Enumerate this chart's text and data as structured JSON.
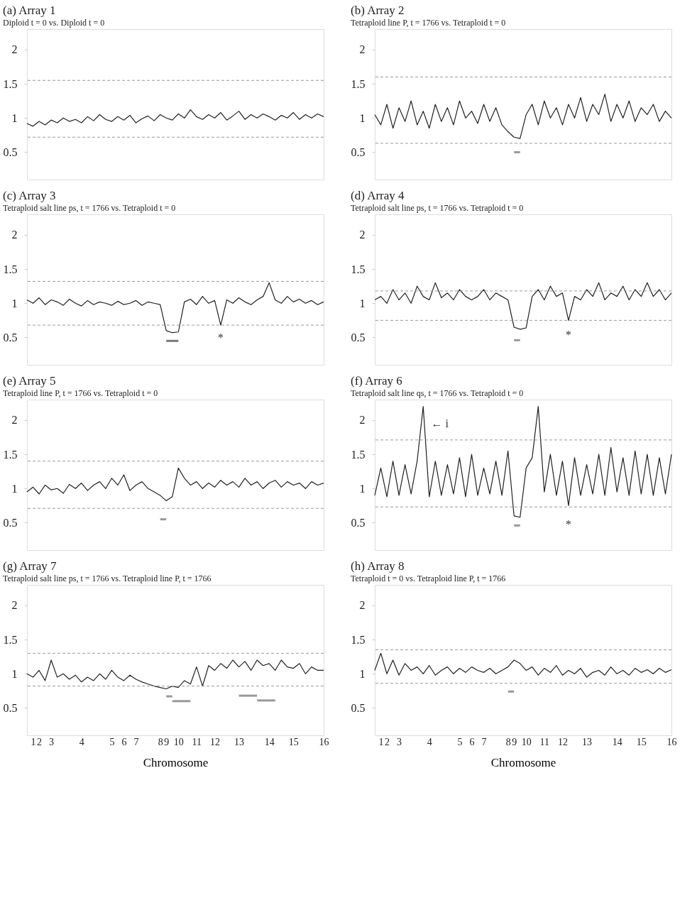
{
  "chart_data": [
    {
      "type": "line",
      "title": "(a) Array 1",
      "subtitle": "Diploid t = 0 vs. Diploid t = 0",
      "tick_labels": "y",
      "ylim": [
        0.1,
        2.3
      ],
      "yticks": [
        0.5,
        1,
        1.5,
        2
      ],
      "categories": [
        null,
        "1",
        "2",
        null,
        "3",
        null,
        null,
        null,
        null,
        "4",
        null,
        null,
        null,
        null,
        "5",
        null,
        "6",
        null,
        "7",
        null,
        null,
        null,
        "8",
        "9",
        null,
        "10",
        null,
        null,
        "11",
        null,
        null,
        "12",
        null,
        null,
        null,
        "13",
        null,
        null,
        null,
        null,
        "14",
        null,
        null,
        null,
        "15",
        null,
        null,
        null,
        null,
        "16"
      ],
      "series": [
        {
          "color": "#222222",
          "values": [
            0.92,
            0.88,
            0.95,
            0.9,
            0.97,
            0.93,
            1.0,
            0.95,
            0.98,
            0.93,
            1.02,
            0.96,
            1.05,
            0.98,
            0.95,
            1.02,
            0.97,
            1.04,
            0.93,
            0.99,
            1.03,
            0.96,
            1.05,
            1.0,
            0.97,
            1.06,
            1.0,
            1.12,
            1.02,
            0.98,
            1.05,
            1.0,
            1.08,
            0.97,
            1.03,
            1.1,
            0.98,
            1.05,
            1.0,
            1.06,
            1.02,
            0.97,
            1.04,
            1.0,
            1.08,
            0.98,
            1.05,
            1.0,
            1.06,
            1.02
          ]
        }
      ],
      "ref_lines": [
        {
          "axis": "y",
          "value": 1.55,
          "color": "#999999",
          "line_style": "dashed"
        },
        {
          "axis": "y",
          "value": 0.72,
          "color": "#999999",
          "line_style": "dashed"
        }
      ]
    },
    {
      "type": "line",
      "title": "(b) Array 2",
      "subtitle": "Tetraploid line P, t = 1766 vs. Tetraploid t = 0",
      "tick_labels": "y",
      "ylim": [
        0.1,
        2.3
      ],
      "yticks": [
        0.5,
        1,
        1.5,
        2
      ],
      "categories": [
        null,
        "1",
        "2",
        null,
        "3",
        null,
        null,
        null,
        null,
        "4",
        null,
        null,
        null,
        null,
        "5",
        null,
        "6",
        null,
        "7",
        null,
        null,
        null,
        "8",
        "9",
        null,
        "10",
        null,
        null,
        "11",
        null,
        null,
        "12",
        null,
        null,
        null,
        "13",
        null,
        null,
        null,
        null,
        "14",
        null,
        null,
        null,
        "15",
        null,
        null,
        null,
        null,
        "16"
      ],
      "series": [
        {
          "color": "#222222",
          "values": [
            1.05,
            0.9,
            1.2,
            0.85,
            1.15,
            0.95,
            1.25,
            0.9,
            1.1,
            0.85,
            1.2,
            0.95,
            1.15,
            0.9,
            1.25,
            1.0,
            1.1,
            0.92,
            1.2,
            0.95,
            1.15,
            0.9,
            0.8,
            0.72,
            0.7,
            1.05,
            1.2,
            0.9,
            1.25,
            1.0,
            1.15,
            0.9,
            1.2,
            1.0,
            1.3,
            0.95,
            1.2,
            1.05,
            1.35,
            0.95,
            1.2,
            1.0,
            1.25,
            0.95,
            1.15,
            1.05,
            1.2,
            0.95,
            1.1,
            1.0
          ]
        },
        {
          "color": "#999999",
          "values": [
            null,
            null,
            null,
            null,
            null,
            null,
            null,
            null,
            null,
            null,
            null,
            null,
            null,
            null,
            null,
            null,
            null,
            null,
            null,
            null,
            null,
            null,
            null,
            0.5,
            0.5,
            null,
            null,
            null,
            null,
            null,
            null,
            null,
            null,
            null,
            null,
            null,
            null,
            null,
            null,
            null,
            null,
            null,
            null,
            null,
            null,
            null,
            null,
            null,
            null,
            null
          ]
        }
      ],
      "ref_lines": [
        {
          "axis": "y",
          "value": 1.6,
          "color": "#999999",
          "line_style": "dashed"
        },
        {
          "axis": "y",
          "value": 0.63,
          "color": "#999999",
          "line_style": "dashed"
        }
      ]
    },
    {
      "type": "line",
      "title": "(c) Array 3",
      "subtitle": "Tetraploid salt line ps, t = 1766 vs. Tetraploid t = 0",
      "tick_labels": "y",
      "ylim": [
        0.1,
        2.3
      ],
      "yticks": [
        0.5,
        1,
        1.5,
        2
      ],
      "categories": [
        null,
        "1",
        "2",
        null,
        "3",
        null,
        null,
        null,
        null,
        "4",
        null,
        null,
        null,
        null,
        "5",
        null,
        "6",
        null,
        "7",
        null,
        null,
        null,
        "8",
        "9",
        null,
        "10",
        null,
        null,
        "11",
        null,
        null,
        "12",
        null,
        null,
        null,
        "13",
        null,
        null,
        null,
        null,
        "14",
        null,
        null,
        null,
        "15",
        null,
        null,
        null,
        null,
        "16"
      ],
      "series": [
        {
          "color": "#222222",
          "values": [
            1.05,
            1.0,
            1.08,
            0.98,
            1.05,
            1.02,
            0.97,
            1.06,
            1.0,
            0.96,
            1.04,
            0.98,
            1.02,
            1.0,
            0.97,
            1.03,
            0.98,
            1.0,
            1.04,
            0.97,
            1.02,
            1.0,
            0.98,
            0.6,
            0.57,
            0.58,
            1.02,
            1.06,
            0.98,
            1.1,
            1.0,
            1.04,
            0.68,
            1.05,
            1.0,
            1.08,
            1.02,
            0.98,
            1.05,
            1.1,
            1.3,
            1.05,
            1.0,
            1.1,
            1.02,
            1.06,
            1.0,
            1.04,
            0.98,
            1.02
          ]
        },
        {
          "color": "#777777",
          "values": [
            null,
            null,
            null,
            null,
            null,
            null,
            null,
            null,
            null,
            null,
            null,
            null,
            null,
            null,
            null,
            null,
            null,
            null,
            null,
            null,
            null,
            null,
            null,
            0.45,
            0.45,
            0.45,
            null,
            null,
            null,
            null,
            null,
            null,
            null,
            null,
            null,
            null,
            null,
            null,
            null,
            null,
            null,
            null,
            null,
            null,
            null,
            null,
            null,
            null,
            null,
            null
          ]
        }
      ],
      "ref_lines": [
        {
          "axis": "y",
          "value": 1.32,
          "color": "#999999",
          "line_style": "dashed"
        },
        {
          "axis": "y",
          "value": 0.68,
          "color": "#999999",
          "line_style": "dashed"
        }
      ],
      "annotations": [
        "*"
      ]
    },
    {
      "type": "line",
      "title": "(d) Array 4",
      "subtitle": "Tetraploid salt line ps, t = 1766 vs. Tetraploid t = 0",
      "tick_labels": "y",
      "ylim": [
        0.1,
        2.3
      ],
      "yticks": [
        0.5,
        1,
        1.5,
        2
      ],
      "categories": [
        null,
        "1",
        "2",
        null,
        "3",
        null,
        null,
        null,
        null,
        "4",
        null,
        null,
        null,
        null,
        "5",
        null,
        "6",
        null,
        "7",
        null,
        null,
        null,
        "8",
        "9",
        null,
        "10",
        null,
        null,
        "11",
        null,
        null,
        "12",
        null,
        null,
        null,
        "13",
        null,
        null,
        null,
        null,
        "14",
        null,
        null,
        null,
        "15",
        null,
        null,
        null,
        null,
        "16"
      ],
      "series": [
        {
          "color": "#222222",
          "values": [
            1.05,
            1.1,
            1.0,
            1.2,
            1.05,
            1.15,
            1.0,
            1.25,
            1.1,
            1.05,
            1.3,
            1.08,
            1.15,
            1.05,
            1.2,
            1.1,
            1.05,
            1.1,
            1.2,
            1.05,
            1.15,
            1.1,
            1.05,
            0.65,
            0.62,
            0.64,
            1.1,
            1.2,
            1.05,
            1.25,
            1.1,
            1.15,
            0.75,
            1.1,
            1.05,
            1.2,
            1.1,
            1.3,
            1.05,
            1.15,
            1.1,
            1.25,
            1.05,
            1.2,
            1.1,
            1.3,
            1.1,
            1.2,
            1.05,
            1.15
          ]
        },
        {
          "color": "#999999",
          "values": [
            null,
            null,
            null,
            null,
            null,
            null,
            null,
            null,
            null,
            null,
            null,
            null,
            null,
            null,
            null,
            null,
            null,
            null,
            null,
            null,
            null,
            null,
            null,
            0.46,
            0.46,
            null,
            null,
            null,
            null,
            null,
            null,
            null,
            null,
            null,
            null,
            null,
            null,
            null,
            null,
            null,
            null,
            null,
            null,
            null,
            null,
            null,
            null,
            null,
            null,
            null
          ]
        }
      ],
      "ref_lines": [
        {
          "axis": "y",
          "value": 1.18,
          "color": "#999999",
          "line_style": "dashed"
        },
        {
          "axis": "y",
          "value": 0.75,
          "color": "#999999",
          "line_style": "dashed"
        }
      ],
      "annotations": [
        "*"
      ]
    },
    {
      "type": "line",
      "title": "(e) Array 5",
      "subtitle": "Tetraploid line P, t = 1766 vs. Tetraploid t = 0",
      "tick_labels": "y",
      "ylim": [
        0.1,
        2.3
      ],
      "yticks": [
        0.5,
        1,
        1.5,
        2
      ],
      "categories": [
        null,
        "1",
        "2",
        null,
        "3",
        null,
        null,
        null,
        null,
        "4",
        null,
        null,
        null,
        null,
        "5",
        null,
        "6",
        null,
        "7",
        null,
        null,
        null,
        "8",
        "9",
        null,
        "10",
        null,
        null,
        "11",
        null,
        null,
        "12",
        null,
        null,
        null,
        "13",
        null,
        null,
        null,
        null,
        "14",
        null,
        null,
        null,
        "15",
        null,
        null,
        null,
        null,
        "16"
      ],
      "series": [
        {
          "color": "#222222",
          "values": [
            0.95,
            1.02,
            0.92,
            1.05,
            0.98,
            1.0,
            0.93,
            1.06,
            1.0,
            1.08,
            0.97,
            1.05,
            1.1,
            1.0,
            1.15,
            1.05,
            1.2,
            0.97,
            1.05,
            1.1,
            1.0,
            0.95,
            0.9,
            0.82,
            0.88,
            1.3,
            1.15,
            1.05,
            1.1,
            1.0,
            1.08,
            1.02,
            1.12,
            1.05,
            1.1,
            1.02,
            1.15,
            1.05,
            1.1,
            1.0,
            1.08,
            1.12,
            1.02,
            1.1,
            1.05,
            1.08,
            1.0,
            1.1,
            1.05,
            1.08
          ]
        },
        {
          "color": "#999999",
          "values": [
            null,
            null,
            null,
            null,
            null,
            null,
            null,
            null,
            null,
            null,
            null,
            null,
            null,
            null,
            null,
            null,
            null,
            null,
            null,
            null,
            null,
            null,
            0.55,
            0.55,
            null,
            null,
            null,
            null,
            null,
            null,
            null,
            null,
            null,
            null,
            null,
            null,
            null,
            null,
            null,
            null,
            null,
            null,
            null,
            null,
            null,
            null,
            null,
            null,
            null,
            null
          ]
        }
      ],
      "ref_lines": [
        {
          "axis": "y",
          "value": 1.4,
          "color": "#999999",
          "line_style": "dashed"
        },
        {
          "axis": "y",
          "value": 0.71,
          "color": "#999999",
          "line_style": "dashed"
        }
      ]
    },
    {
      "type": "line",
      "title": "(f) Array 6",
      "subtitle": "Tetraploid salt line qs, t = 1766 vs. Tetraploid t = 0",
      "tick_labels": "y",
      "ylim": [
        0.1,
        2.3
      ],
      "yticks": [
        0.5,
        1,
        1.5,
        2
      ],
      "categories": [
        null,
        "1",
        "2",
        null,
        "3",
        null,
        null,
        null,
        null,
        "4",
        null,
        null,
        null,
        null,
        "5",
        null,
        "6",
        null,
        "7",
        null,
        null,
        null,
        "8",
        "9",
        null,
        "10",
        null,
        null,
        "11",
        null,
        null,
        "12",
        null,
        null,
        null,
        "13",
        null,
        null,
        null,
        null,
        "14",
        null,
        null,
        null,
        "15",
        null,
        null,
        null,
        null,
        "16"
      ],
      "series": [
        {
          "color": "#222222",
          "values": [
            0.9,
            1.3,
            0.88,
            1.4,
            0.9,
            1.35,
            0.92,
            1.4,
            2.2,
            0.88,
            1.4,
            0.9,
            1.35,
            0.92,
            1.45,
            0.88,
            1.5,
            0.9,
            1.3,
            0.92,
            1.4,
            0.9,
            1.55,
            0.6,
            0.58,
            1.3,
            1.45,
            2.2,
            0.95,
            1.5,
            0.9,
            1.4,
            0.75,
            1.45,
            0.9,
            1.35,
            0.92,
            1.5,
            0.9,
            1.6,
            0.95,
            1.45,
            0.9,
            1.55,
            0.92,
            1.5,
            0.9,
            1.45,
            0.92,
            1.5
          ]
        },
        {
          "color": "#999999",
          "values": [
            null,
            null,
            null,
            null,
            null,
            null,
            null,
            null,
            null,
            null,
            null,
            null,
            null,
            null,
            null,
            null,
            null,
            null,
            null,
            null,
            null,
            null,
            null,
            0.46,
            0.46,
            null,
            null,
            null,
            null,
            null,
            null,
            null,
            null,
            null,
            null,
            null,
            null,
            null,
            null,
            null,
            null,
            null,
            null,
            null,
            null,
            null,
            null,
            null,
            null,
            null
          ]
        }
      ],
      "ref_lines": [
        {
          "axis": "y",
          "value": 1.71,
          "color": "#999999",
          "line_style": "dashed"
        },
        {
          "axis": "y",
          "value": 0.73,
          "color": "#999999",
          "line_style": "dashed"
        }
      ],
      "annotations": [
        "*",
        "← i"
      ]
    },
    {
      "type": "line",
      "title": "(g) Array 7",
      "subtitle": "Tetraploid salt line ps, t = 1766 vs. Tetraploid line P, t = 1766",
      "xlabel": "Chromosome",
      "ylim": [
        0.1,
        2.3
      ],
      "yticks": [
        0.5,
        1,
        1.5,
        2
      ],
      "categories": [
        null,
        "1",
        "2",
        null,
        "3",
        null,
        null,
        null,
        null,
        "4",
        null,
        null,
        null,
        null,
        "5",
        null,
        "6",
        null,
        "7",
        null,
        null,
        null,
        "8",
        "9",
        null,
        "10",
        null,
        null,
        "11",
        null,
        null,
        "12",
        null,
        null,
        null,
        "13",
        null,
        null,
        null,
        null,
        "14",
        null,
        null,
        null,
        "15",
        null,
        null,
        null,
        null,
        "16"
      ],
      "series": [
        {
          "color": "#222222",
          "values": [
            1.0,
            0.95,
            1.05,
            0.9,
            1.2,
            0.95,
            1.0,
            0.92,
            0.98,
            0.88,
            0.95,
            0.9,
            1.0,
            0.92,
            1.05,
            0.95,
            0.9,
            0.98,
            0.92,
            0.88,
            0.85,
            0.82,
            0.8,
            0.78,
            0.82,
            0.8,
            0.9,
            0.85,
            1.1,
            0.82,
            1.12,
            1.05,
            1.15,
            1.08,
            1.2,
            1.1,
            1.18,
            1.05,
            1.2,
            1.12,
            1.15,
            1.05,
            1.2,
            1.1,
            1.08,
            1.15,
            1.0,
            1.1,
            1.05,
            1.05
          ]
        },
        {
          "color": "#999999",
          "values": [
            null,
            null,
            null,
            null,
            null,
            null,
            null,
            null,
            null,
            null,
            null,
            null,
            null,
            null,
            null,
            null,
            null,
            null,
            null,
            null,
            null,
            null,
            null,
            0.67,
            0.67,
            null,
            null,
            null,
            null,
            null,
            null,
            null,
            null,
            null,
            null,
            null,
            null,
            null,
            null,
            null,
            null,
            null,
            null,
            null,
            null,
            null,
            null,
            null,
            null,
            null
          ]
        },
        {
          "color": "#999999",
          "values": [
            null,
            null,
            null,
            null,
            null,
            null,
            null,
            null,
            null,
            null,
            null,
            null,
            null,
            null,
            null,
            null,
            null,
            null,
            null,
            null,
            null,
            null,
            null,
            null,
            0.6,
            0.6,
            0.6,
            0.6,
            null,
            null,
            null,
            null,
            null,
            null,
            null,
            null,
            null,
            null,
            null,
            null,
            null,
            null,
            null,
            null,
            null,
            null,
            null,
            null,
            null,
            null
          ]
        },
        {
          "color": "#999999",
          "values": [
            null,
            null,
            null,
            null,
            null,
            null,
            null,
            null,
            null,
            null,
            null,
            null,
            null,
            null,
            null,
            null,
            null,
            null,
            null,
            null,
            null,
            null,
            null,
            null,
            null,
            null,
            null,
            null,
            null,
            null,
            null,
            null,
            null,
            null,
            null,
            0.68,
            0.68,
            0.68,
            0.68,
            null,
            null,
            null,
            null,
            null,
            null,
            null,
            null,
            null,
            null,
            null
          ]
        },
        {
          "color": "#999999",
          "values": [
            null,
            null,
            null,
            null,
            null,
            null,
            null,
            null,
            null,
            null,
            null,
            null,
            null,
            null,
            null,
            null,
            null,
            null,
            null,
            null,
            null,
            null,
            null,
            null,
            null,
            null,
            null,
            null,
            null,
            null,
            null,
            null,
            null,
            null,
            null,
            null,
            null,
            null,
            0.61,
            0.61,
            0.61,
            0.61,
            null,
            null,
            null,
            null,
            null,
            null,
            null,
            null
          ]
        }
      ],
      "ref_lines": [
        {
          "axis": "y",
          "value": 1.3,
          "color": "#999999",
          "line_style": "dashed"
        },
        {
          "axis": "y",
          "value": 0.82,
          "color": "#999999",
          "line_style": "dashed"
        }
      ]
    },
    {
      "type": "line",
      "title": "(h) Array 8",
      "subtitle": "Tetraploid t = 0 vs. Tetraploid line P, t = 1766",
      "xlabel": "Chromosome",
      "ylim": [
        0.1,
        2.3
      ],
      "yticks": [
        0.5,
        1,
        1.5,
        2
      ],
      "categories": [
        null,
        "1",
        "2",
        null,
        "3",
        null,
        null,
        null,
        null,
        "4",
        null,
        null,
        null,
        null,
        "5",
        null,
        "6",
        null,
        "7",
        null,
        null,
        null,
        "8",
        "9",
        null,
        "10",
        null,
        null,
        "11",
        null,
        null,
        "12",
        null,
        null,
        null,
        "13",
        null,
        null,
        null,
        null,
        "14",
        null,
        null,
        null,
        "15",
        null,
        null,
        null,
        null,
        "16"
      ],
      "series": [
        {
          "color": "#222222",
          "values": [
            1.05,
            1.3,
            1.0,
            1.2,
            0.98,
            1.15,
            1.05,
            1.1,
            1.0,
            1.12,
            0.98,
            1.05,
            1.1,
            1.0,
            1.08,
            1.02,
            1.1,
            1.05,
            1.02,
            1.08,
            1.0,
            1.05,
            1.1,
            1.2,
            1.15,
            1.05,
            1.1,
            0.98,
            1.08,
            1.02,
            1.12,
            0.98,
            1.05,
            1.0,
            1.08,
            0.95,
            1.02,
            1.05,
            0.98,
            1.1,
            1.0,
            1.05,
            0.98,
            1.08,
            1.02,
            1.06,
            1.0,
            1.08,
            1.02,
            1.06
          ]
        },
        {
          "color": "#999999",
          "values": [
            null,
            null,
            null,
            null,
            null,
            null,
            null,
            null,
            null,
            null,
            null,
            null,
            null,
            null,
            null,
            null,
            null,
            null,
            null,
            null,
            null,
            null,
            0.74,
            0.74,
            null,
            null,
            null,
            null,
            null,
            null,
            null,
            null,
            null,
            null,
            null,
            null,
            null,
            null,
            null,
            null,
            null,
            null,
            null,
            null,
            null,
            null,
            null,
            null,
            null,
            null
          ]
        }
      ],
      "ref_lines": [
        {
          "axis": "y",
          "value": 1.35,
          "color": "#999999",
          "line_style": "dashed"
        },
        {
          "axis": "y",
          "value": 0.86,
          "color": "#999999",
          "line_style": "dashed"
        }
      ]
    }
  ]
}
